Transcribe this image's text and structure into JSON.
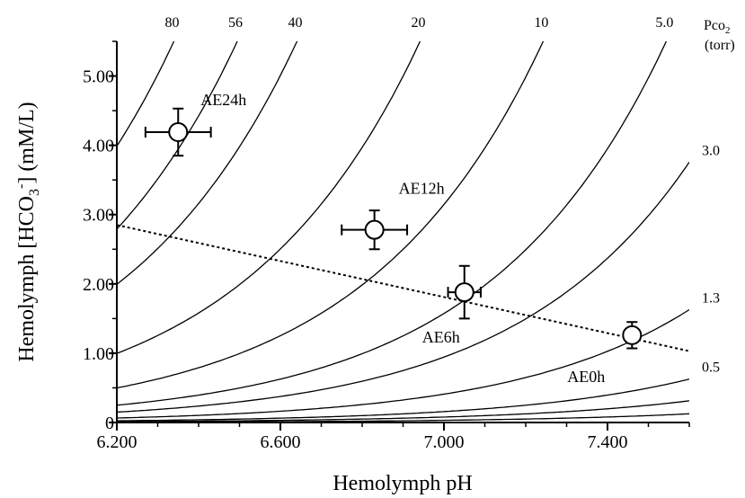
{
  "chart_data": {
    "type": "scatter",
    "title": "",
    "xlabel": "Hemolymph pH",
    "ylabel": {
      "prefix": "Hemolymph [HCO",
      "sub": "3",
      "sup": "-",
      "suffix": "]  (mM/L)"
    },
    "xlim": [
      6.2,
      7.6
    ],
    "ylim": [
      0,
      5.5
    ],
    "x_ticks": [
      {
        "value": 6.2,
        "label": "6.200"
      },
      {
        "value": 6.6,
        "label": "6.600"
      },
      {
        "value": 7.0,
        "label": "7.000"
      },
      {
        "value": 7.4,
        "label": "7.400"
      }
    ],
    "y_ticks": [
      {
        "value": 0,
        "label": "0"
      },
      {
        "value": 1,
        "label": "1.00"
      },
      {
        "value": 2,
        "label": "2.00"
      },
      {
        "value": 3,
        "label": "3.00"
      },
      {
        "value": 4,
        "label": "4.00"
      },
      {
        "value": 5,
        "label": "5.00"
      }
    ],
    "pco2_header": {
      "prefix": "Pco",
      "sub": "2",
      "unit": "(torr)"
    },
    "isopleths": [
      {
        "pco2": 80,
        "label": "80"
      },
      {
        "pco2": 56,
        "label": "56"
      },
      {
        "pco2": 40,
        "label": "40"
      },
      {
        "pco2": 20,
        "label": "20"
      },
      {
        "pco2": 10,
        "label": "10"
      },
      {
        "pco2": 5.0,
        "label": "5.0"
      },
      {
        "pco2": 3.0,
        "label": "3.0"
      },
      {
        "pco2": 1.3,
        "label": "1.3"
      },
      {
        "pco2": 0.5,
        "label": "0.5"
      },
      {
        "pco2": 0.25,
        "label": ""
      },
      {
        "pco2": 0.1,
        "label": ""
      }
    ],
    "isopleth_model": {
      "pK": 6.1,
      "alpha": 0.0396
    },
    "points": [
      {
        "label": "AE0h",
        "x": 7.46,
        "y": 1.26,
        "xerr": 0.0,
        "yerr": 0.19
      },
      {
        "label": "AE6h",
        "x": 7.05,
        "y": 1.88,
        "xerr": 0.04,
        "yerr": 0.38
      },
      {
        "label": "AE12h",
        "x": 6.83,
        "y": 2.78,
        "xerr": 0.08,
        "yerr": 0.28
      },
      {
        "label": "AE24h",
        "x": 6.35,
        "y": 4.19,
        "xerr": 0.08,
        "yerr": 0.34
      }
    ],
    "buffer_line": {
      "style": "dotted",
      "x": [
        6.2,
        7.6
      ],
      "y": [
        2.85,
        1.03
      ]
    },
    "grid": false,
    "legend": "none"
  }
}
